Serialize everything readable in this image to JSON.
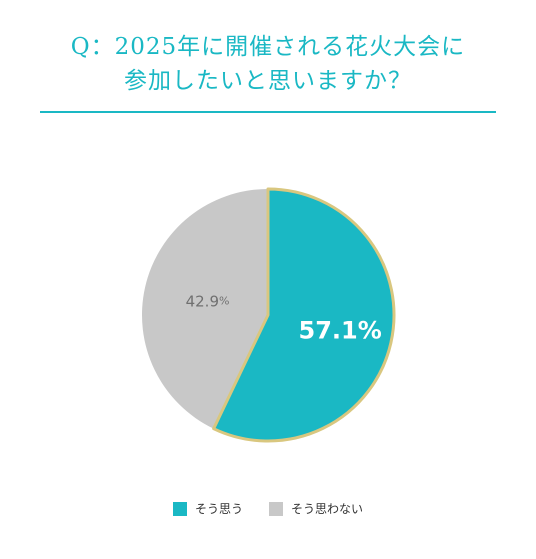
{
  "title": {
    "line1": "Q：2025年に開催される花火大会に",
    "line2": "参加したいと思いますか？"
  },
  "colors": {
    "accent": "#1ab8c4",
    "gray": "#c8c8c8",
    "outline": "#d9c77f"
  },
  "chart_data": {
    "type": "pie",
    "title": "Q：2025年に開催される花火大会に参加したいと思いますか？",
    "slices": [
      {
        "label": "そう思う",
        "value": 57.1,
        "value_label": "57.1",
        "unit": "%",
        "color": "#1ab8c4"
      },
      {
        "label": "そう思わない",
        "value": 42.9,
        "value_label": "42.9",
        "unit": "%",
        "color": "#c8c8c8"
      }
    ],
    "legend_placement": "bottom"
  }
}
